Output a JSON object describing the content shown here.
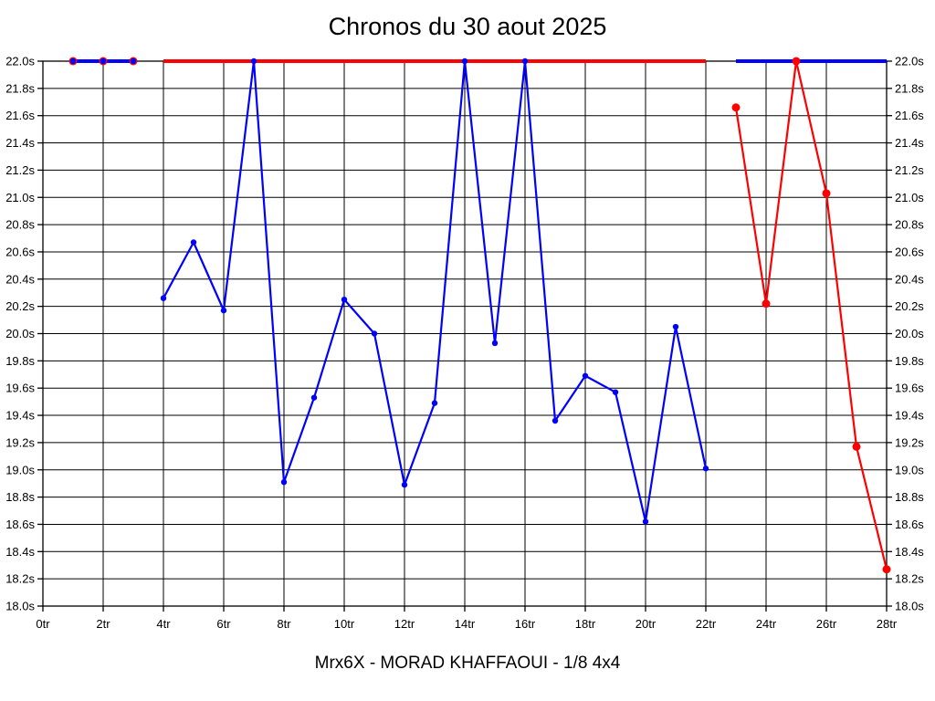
{
  "title": "Chronos du 30 aout 2025",
  "footer": "Mrx6X - MORAD KHAFFAOUI - 1/8 4x4",
  "colors": {
    "background": "#ffffff",
    "grid": "#000000",
    "text": "#000000",
    "series_red": "#ff0000",
    "series_blue": "#0000ff"
  },
  "chart_data": {
    "type": "line",
    "title": "Chronos du 30 aout 2025",
    "subtitle": "Mrx6X - MORAD KHAFFAOUI - 1/8 4x4",
    "x_unit": "tr",
    "y_unit": "s",
    "xlim": [
      0,
      28
    ],
    "ylim": [
      18.0,
      22.0
    ],
    "x_tick_step": 2,
    "y_tick_step": 0.2,
    "grid": true,
    "legend": "none",
    "x_tick_labels": [
      "0tr",
      "2tr",
      "4tr",
      "6tr",
      "8tr",
      "10tr",
      "12tr",
      "14tr",
      "16tr",
      "18tr",
      "20tr",
      "22tr",
      "24tr",
      "26tr",
      "28tr"
    ],
    "y_tick_labels": [
      "22.0s",
      "21.8s",
      "21.6s",
      "21.4s",
      "21.2s",
      "21.0s",
      "20.8s",
      "20.6s",
      "20.4s",
      "20.2s",
      "20.0s",
      "19.8s",
      "19.6s",
      "19.4s",
      "19.2s",
      "19.0s",
      "18.8s",
      "18.6s",
      "18.4s",
      "18.2s",
      "18.0s"
    ],
    "clip_ceiling": 22.0,
    "series": [
      {
        "name": "red",
        "color": "#ff0000",
        "segments": [
          {
            "markers": true,
            "points": [
              [
                1,
                22.0
              ],
              [
                2,
                22.0
              ],
              [
                3,
                22.0
              ]
            ]
          },
          {
            "markers": false,
            "points": [
              [
                4,
                22.0
              ],
              [
                5,
                22.0
              ],
              [
                6,
                22.0
              ],
              [
                7,
                22.0
              ],
              [
                8,
                22.0
              ],
              [
                9,
                22.0
              ],
              [
                10,
                22.0
              ],
              [
                11,
                22.0
              ],
              [
                12,
                22.0
              ],
              [
                13,
                22.0
              ],
              [
                14,
                22.0
              ],
              [
                15,
                22.0
              ],
              [
                16,
                22.0
              ],
              [
                17,
                22.0
              ],
              [
                18,
                22.0
              ],
              [
                19,
                22.0
              ],
              [
                20,
                22.0
              ],
              [
                21,
                22.0
              ],
              [
                22,
                22.0
              ]
            ]
          },
          {
            "markers": true,
            "points": [
              [
                23,
                21.66
              ],
              [
                24,
                20.22
              ],
              [
                25,
                22.0
              ],
              [
                26,
                21.03
              ],
              [
                27,
                19.17
              ],
              [
                28,
                18.27
              ]
            ]
          }
        ]
      },
      {
        "name": "blue",
        "color": "#0000ff",
        "segments": [
          {
            "markers": true,
            "points": [
              [
                1,
                22.0
              ],
              [
                2,
                22.0
              ],
              [
                3,
                22.0
              ]
            ]
          },
          {
            "markers": true,
            "points": [
              [
                4,
                20.26
              ],
              [
                5,
                20.67
              ],
              [
                6,
                20.17
              ],
              [
                7,
                22.0
              ],
              [
                8,
                18.91
              ],
              [
                9,
                19.53
              ],
              [
                10,
                20.25
              ],
              [
                11,
                20.0
              ],
              [
                12,
                18.89
              ],
              [
                13,
                19.49
              ],
              [
                14,
                22.0
              ],
              [
                15,
                19.93
              ],
              [
                16,
                22.0
              ],
              [
                17,
                19.36
              ],
              [
                18,
                19.69
              ],
              [
                19,
                19.57
              ],
              [
                20,
                18.62
              ],
              [
                21,
                20.05
              ],
              [
                22,
                19.01
              ]
            ]
          },
          {
            "markers": false,
            "points": [
              [
                23,
                22.0
              ],
              [
                24,
                22.0
              ],
              [
                25,
                22.0
              ],
              [
                26,
                22.0
              ],
              [
                27,
                22.0
              ],
              [
                28,
                22.0
              ]
            ]
          }
        ]
      }
    ]
  }
}
